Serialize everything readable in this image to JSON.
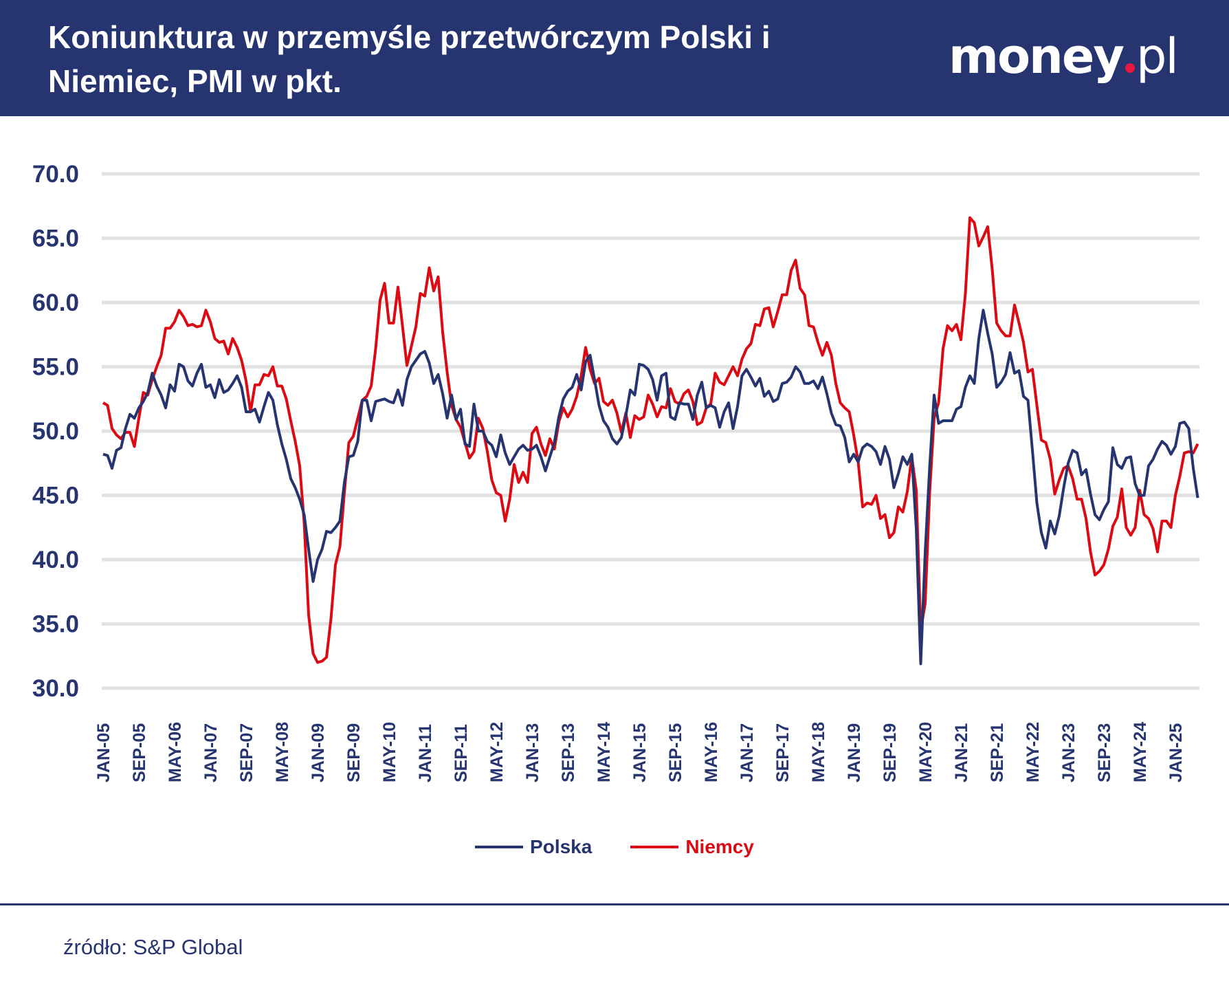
{
  "header": {
    "title": "Koniunktura w przemyśle przetwórczym Polski i Niemiec, PMI w pkt.",
    "logo_main": "money",
    "logo_suffix": "pl"
  },
  "source": "źródło: S&P Global",
  "colors": {
    "navy": "#263470",
    "red": "#dc0a12",
    "grid": "#e2e2e2",
    "logo_dot": "#e8173f"
  },
  "chart_data": {
    "type": "line",
    "title": "Koniunktura w przemyśle przetwórczym Polski i Niemiec, PMI w pkt.",
    "xlabel": "",
    "ylabel": "",
    "ylim": [
      30,
      70
    ],
    "y_ticks": [
      "30.0",
      "35.0",
      "40.0",
      "45.0",
      "50.0",
      "55.0",
      "60.0",
      "65.0",
      "70.0"
    ],
    "x_range": [
      "2005-01",
      "2025-06"
    ],
    "x_ticks": [
      "JAN-05",
      "SEP-05",
      "MAY-06",
      "JAN-07",
      "SEP-07",
      "MAY-08",
      "JAN-09",
      "SEP-09",
      "MAY-10",
      "JAN-11",
      "SEP-11",
      "MAY-12",
      "JAN-13",
      "SEP-13",
      "MAY-14",
      "JAN-15",
      "SEP-15",
      "MAY-16",
      "JAN-17",
      "SEP-17",
      "MAY-18",
      "JAN-19",
      "SEP-19",
      "MAY-20",
      "JAN-21",
      "SEP-21",
      "MAY-22",
      "JAN-23",
      "SEP-23",
      "MAY-24",
      "JAN-25"
    ],
    "grid": true,
    "legend_position": "bottom",
    "series": [
      {
        "name": "Polska",
        "color": "#263470",
        "values_by_year": {
          "2005": [
            48.2,
            48.1,
            47.1,
            48.5,
            48.7,
            50.2,
            51.3,
            51.0,
            51.8,
            52.3,
            53.0,
            54.5
          ],
          "2006": [
            53.5,
            52.8,
            51.8,
            53.6,
            53.1,
            55.2,
            55.0,
            53.9,
            53.5,
            54.5,
            55.2,
            53.4
          ],
          "2007": [
            53.6,
            52.6,
            54.0,
            53.0,
            53.2,
            53.7,
            54.3,
            53.4,
            51.5,
            51.5,
            51.7,
            50.7
          ],
          "2008": [
            51.9,
            53.0,
            52.4,
            50.5,
            49.0,
            47.8,
            46.3,
            45.6,
            44.7,
            43.5,
            40.8,
            38.3
          ],
          "2009": [
            40.0,
            40.8,
            42.2,
            42.1,
            42.5,
            43.0,
            46.0,
            48.0,
            48.1,
            49.2,
            52.4,
            52.4
          ],
          "2010": [
            50.8,
            52.3,
            52.4,
            52.5,
            52.3,
            52.2,
            53.2,
            52.0,
            54.0,
            55.0,
            55.5,
            56.0
          ],
          "2011": [
            56.2,
            55.3,
            53.7,
            54.4,
            52.9,
            51.0,
            52.8,
            50.9,
            51.7,
            49.0,
            48.8,
            52.1
          ],
          "2012": [
            50.0,
            50.0,
            49.2,
            48.9,
            48.0,
            49.7,
            48.3,
            47.4,
            48.0,
            48.6,
            48.9,
            48.5
          ],
          "2013": [
            48.6,
            48.9,
            48.0,
            46.9,
            48.0,
            49.1,
            51.1,
            52.5,
            53.1,
            53.4,
            54.4,
            53.2
          ],
          "2014": [
            55.4,
            55.9,
            54.0,
            52.0,
            50.8,
            50.3,
            49.4,
            49.0,
            49.5,
            51.2,
            53.2,
            52.8
          ],
          "2015": [
            55.2,
            55.1,
            54.8,
            54.0,
            52.4,
            54.3,
            54.5,
            51.1,
            50.9,
            52.2,
            52.1,
            52.1
          ],
          "2016": [
            50.9,
            52.8,
            53.8,
            51.8,
            52.0,
            51.8,
            50.3,
            51.5,
            52.2,
            50.2,
            51.9,
            54.3
          ],
          "2017": [
            54.8,
            54.2,
            53.5,
            54.1,
            52.7,
            53.1,
            52.3,
            52.5,
            53.7,
            53.8,
            54.2,
            55.0
          ],
          "2018": [
            54.6,
            53.7,
            53.7,
            53.9,
            53.3,
            54.2,
            52.9,
            51.4,
            50.5,
            50.4,
            49.5,
            47.6
          ],
          "2019": [
            48.2,
            47.6,
            48.7,
            49.0,
            48.8,
            48.4,
            47.4,
            48.8,
            47.8,
            45.6,
            46.7,
            48.0
          ],
          "2020": [
            47.4,
            48.2,
            42.4,
            31.9,
            40.6,
            47.2,
            52.8,
            50.6,
            50.8,
            50.8,
            50.8,
            51.7
          ],
          "2021": [
            51.9,
            53.4,
            54.3,
            53.7,
            57.2,
            59.4,
            57.6,
            56.0,
            53.4,
            53.8,
            54.4,
            56.1
          ],
          "2022": [
            54.5,
            54.7,
            52.7,
            52.4,
            48.5,
            44.4,
            42.1,
            40.9,
            43.0,
            42.0,
            43.4,
            45.6
          ],
          "2023": [
            47.5,
            48.5,
            48.3,
            46.6,
            47.0,
            45.1,
            43.5,
            43.1,
            43.9,
            44.5,
            48.7,
            47.4
          ],
          "2024": [
            47.1,
            47.9,
            48.0,
            45.9,
            45.0,
            45.0,
            47.3,
            47.8,
            48.6,
            49.2,
            48.9,
            48.2
          ],
          "2025": [
            48.8,
            50.6,
            50.7,
            50.2,
            47.1,
            44.8
          ]
        }
      },
      {
        "name": "Niemcy",
        "color": "#dc0a12",
        "values_by_year": {
          "2005": [
            52.2,
            52.0,
            50.2,
            49.7,
            49.4,
            49.9,
            49.9,
            48.8,
            51.0,
            53.0,
            52.8,
            54.0
          ],
          "2006": [
            55.0,
            55.9,
            58.0,
            58.0,
            58.5,
            59.4,
            58.9,
            58.2,
            58.3,
            58.1,
            58.2,
            59.4
          ],
          "2007": [
            58.5,
            57.2,
            56.9,
            57.0,
            56.0,
            57.2,
            56.5,
            55.5,
            53.9,
            51.5,
            53.6,
            53.6
          ],
          "2008": [
            54.4,
            54.3,
            55.0,
            53.5,
            53.5,
            52.5,
            50.8,
            49.2,
            47.3,
            42.9,
            35.7,
            32.7
          ],
          "2009": [
            32.0,
            32.1,
            32.4,
            35.4,
            39.6,
            41.0,
            45.2,
            49.1,
            49.6,
            51.0,
            52.4,
            52.7
          ],
          "2010": [
            53.5,
            56.4,
            60.2,
            61.5,
            58.4,
            58.4,
            61.2,
            58.2,
            55.1,
            56.6,
            58.1,
            60.7
          ],
          "2011": [
            60.5,
            62.7,
            60.9,
            62.0,
            57.7,
            54.6,
            52.0,
            50.9,
            50.3,
            49.1,
            47.9,
            48.4
          ],
          "2012": [
            51.0,
            50.2,
            48.4,
            46.2,
            45.2,
            45.0,
            43.0,
            44.7,
            47.4,
            46.0,
            46.8,
            46.0
          ],
          "2013": [
            49.8,
            50.3,
            49.0,
            48.1,
            49.4,
            48.6,
            50.7,
            51.8,
            51.1,
            51.7,
            52.7,
            54.3
          ],
          "2014": [
            56.5,
            54.8,
            53.7,
            54.1,
            52.3,
            52.0,
            52.4,
            51.4,
            49.9,
            51.4,
            49.5,
            51.2
          ],
          "2015": [
            50.9,
            51.1,
            52.8,
            52.1,
            51.1,
            51.9,
            51.8,
            53.3,
            52.3,
            52.1,
            52.9,
            53.2
          ],
          "2016": [
            52.3,
            50.5,
            50.7,
            51.8,
            52.1,
            54.5,
            53.8,
            53.6,
            54.3,
            55.0,
            54.3,
            55.6
          ],
          "2017": [
            56.4,
            56.8,
            58.3,
            58.2,
            59.5,
            59.6,
            58.1,
            59.3,
            60.6,
            60.6,
            62.5,
            63.3
          ],
          "2018": [
            61.1,
            60.6,
            58.2,
            58.1,
            56.9,
            55.9,
            56.9,
            55.9,
            53.7,
            52.2,
            51.8,
            51.5
          ],
          "2019": [
            49.7,
            47.6,
            44.1,
            44.4,
            44.3,
            45.0,
            43.2,
            43.5,
            41.7,
            42.1,
            44.1,
            43.7
          ],
          "2020": [
            45.3,
            48.0,
            45.4,
            34.5,
            36.6,
            45.2,
            51.0,
            52.2,
            56.4,
            58.2,
            57.8,
            58.3
          ],
          "2021": [
            57.1,
            60.7,
            66.6,
            66.2,
            64.4,
            65.1,
            65.9,
            62.6,
            58.4,
            57.8,
            57.4,
            57.4
          ],
          "2022": [
            59.8,
            58.4,
            56.9,
            54.6,
            54.8,
            52.0,
            49.3,
            49.1,
            47.8,
            45.1,
            46.2,
            47.1
          ],
          "2023": [
            47.3,
            46.3,
            44.7,
            44.7,
            43.2,
            40.6,
            38.8,
            39.1,
            39.6,
            40.8,
            42.6,
            43.3
          ],
          "2024": [
            45.5,
            42.5,
            41.9,
            42.5,
            45.4,
            43.5,
            43.2,
            42.4,
            40.6,
            43.0,
            43.0,
            42.5
          ],
          "2025": [
            45.0,
            46.5,
            48.3,
            48.4,
            48.3,
            49.0
          ]
        }
      }
    ]
  }
}
